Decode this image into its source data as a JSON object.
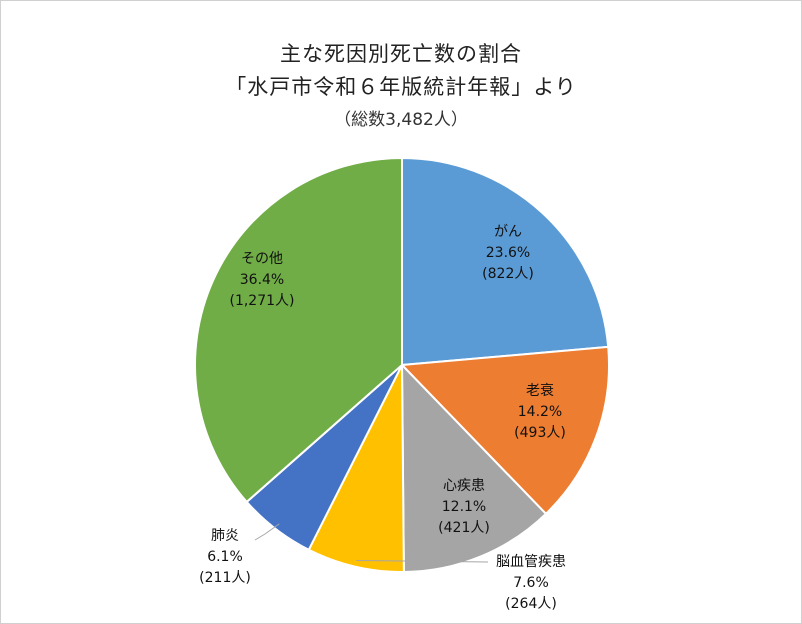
{
  "chart_data": {
    "type": "pie",
    "title_lines": [
      "主な死因別死亡数の割合",
      "「水戸市令和６年版統計年報」より"
    ],
    "subtitle": "（総数3,482人）",
    "slices": [
      {
        "label": "がん",
        "percent_label": "23.6%",
        "count_label": "(822人)",
        "value": 822,
        "color": "#5b9bd5"
      },
      {
        "label": "老衰",
        "percent_label": "14.2%",
        "count_label": "(493人)",
        "value": 493,
        "color": "#ed7d31"
      },
      {
        "label": "心疾患",
        "percent_label": "12.1%",
        "count_label": "(421人)",
        "value": 421,
        "color": "#a5a5a5"
      },
      {
        "label": "脳血管疾患",
        "percent_label": "7.6%",
        "count_label": "(264人)",
        "value": 264,
        "color": "#ffc000"
      },
      {
        "label": "肺炎",
        "percent_label": "6.1%",
        "count_label": "(211人)",
        "value": 211,
        "color": "#4472c4"
      },
      {
        "label": "その他",
        "percent_label": "36.4%",
        "count_label": "(1,271人)",
        "value": 1271,
        "color": "#70ad47"
      }
    ]
  }
}
